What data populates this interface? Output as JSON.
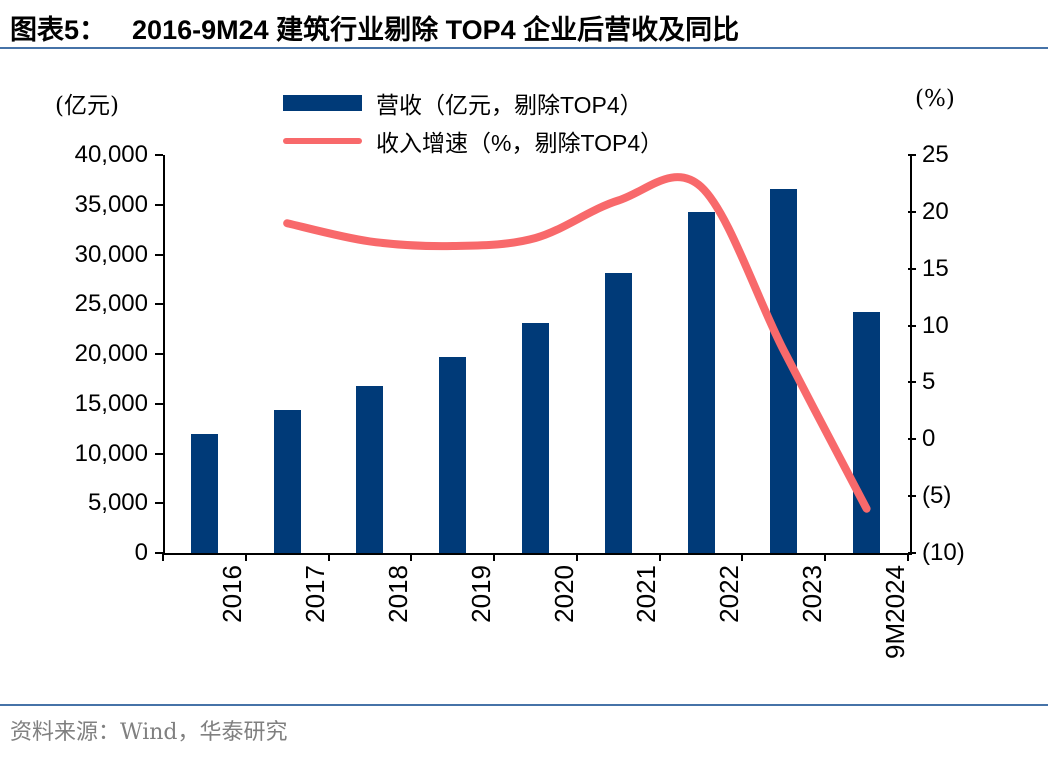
{
  "header": {
    "figure_label": "图表5：",
    "title": "2016-9M24 建筑行业剔除 TOP4 企业后营收及同比"
  },
  "footer": {
    "source": "资料来源：Wind，华泰研究"
  },
  "colors": {
    "bar": "#003A78",
    "line": "#F8696B",
    "divider": "#4673A8",
    "axis": "#000000",
    "source_text": "#808080"
  },
  "chart_data": {
    "type": "bar",
    "subtype": "bar+line combo, dual axis",
    "categories": [
      "2016",
      "2017",
      "2018",
      "2019",
      "2020",
      "2021",
      "2022",
      "2023",
      "9M2024"
    ],
    "series": [
      {
        "name": "营收（亿元，剔除TOP4）",
        "chart_type": "bar",
        "axis": "left",
        "color": "#003A78",
        "values": [
          12000,
          14400,
          16800,
          19700,
          23100,
          28100,
          34300,
          36600,
          24200
        ]
      },
      {
        "name": "收入增速（%，剔除TOP4）",
        "chart_type": "line",
        "axis": "right",
        "color": "#F8696B",
        "smooth": true,
        "values": [
          null,
          19.0,
          17.4,
          17.0,
          17.7,
          21.0,
          22.2,
          7.8,
          -6.1
        ]
      }
    ],
    "left_axis": {
      "unit": "(亿元)",
      "min": 0,
      "max": 40000,
      "step": 5000,
      "tick_labels": [
        "0",
        "5,000",
        "10,000",
        "15,000",
        "20,000",
        "25,000",
        "30,000",
        "35,000",
        "40,000"
      ]
    },
    "right_axis": {
      "unit": "(%)",
      "min": -10,
      "max": 25,
      "step": 5,
      "tick_labels": [
        "(10)",
        "(5)",
        "0",
        "5",
        "10",
        "15",
        "20",
        "25"
      ]
    },
    "grid": false,
    "legend_position": "top-center"
  }
}
